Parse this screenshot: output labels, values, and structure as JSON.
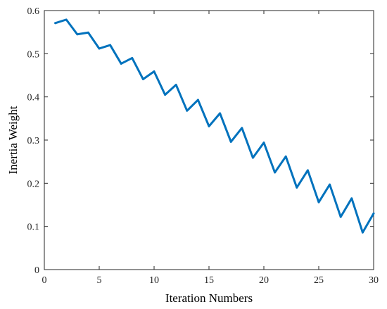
{
  "chart_data": {
    "type": "line",
    "xlabel": "Iteration Numbers",
    "ylabel": "Inertia Weight",
    "xlim": [
      0,
      30
    ],
    "ylim": [
      0,
      0.6
    ],
    "x_ticks": [
      0,
      5,
      10,
      15,
      20,
      25,
      30
    ],
    "x_tick_labels": [
      "0",
      "5",
      "10",
      "15",
      "20",
      "25",
      "30"
    ],
    "y_ticks": [
      0,
      0.1,
      0.2,
      0.3,
      0.4,
      0.5,
      0.6
    ],
    "y_tick_labels": [
      "0",
      "0.1",
      "0.2",
      "0.3",
      "0.4",
      "0.5",
      "0.6"
    ],
    "grid": false,
    "series": [
      {
        "color": "#0072BD",
        "x": [
          1,
          2,
          3,
          4,
          5,
          6,
          7,
          8,
          9,
          10,
          11,
          12,
          13,
          14,
          15,
          16,
          17,
          18,
          19,
          20,
          21,
          22,
          23,
          24,
          25,
          26,
          27,
          28,
          29,
          30
        ],
        "y": [
          0.571,
          0.579,
          0.545,
          0.549,
          0.512,
          0.52,
          0.477,
          0.49,
          0.441,
          0.459,
          0.405,
          0.428,
          0.368,
          0.393,
          0.332,
          0.362,
          0.296,
          0.328,
          0.259,
          0.294,
          0.225,
          0.262,
          0.19,
          0.23,
          0.156,
          0.197,
          0.122,
          0.165,
          0.086,
          0.13
        ]
      }
    ]
  }
}
